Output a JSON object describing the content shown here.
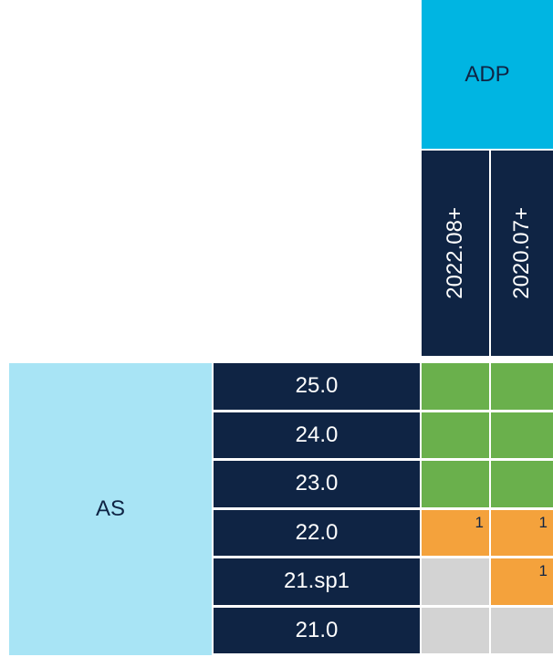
{
  "header": {
    "group": "ADP",
    "versions": [
      "2022.08+",
      "2020.07+"
    ]
  },
  "row_group": "AS",
  "rows": [
    {
      "label": "25.0",
      "cells": [
        {
          "color": "#6ab04c"
        },
        {
          "color": "#6ab04c"
        }
      ]
    },
    {
      "label": "24.0",
      "cells": [
        {
          "color": "#6ab04c"
        },
        {
          "color": "#6ab04c"
        }
      ]
    },
    {
      "label": "23.0",
      "cells": [
        {
          "color": "#6ab04c"
        },
        {
          "color": "#6ab04c"
        }
      ]
    },
    {
      "label": "22.0",
      "cells": [
        {
          "color": "#f4a23c",
          "note": "1"
        },
        {
          "color": "#f4a23c",
          "note": "1"
        }
      ]
    },
    {
      "label": "21.sp1",
      "cells": [
        {
          "color": "#d3d3d3"
        },
        {
          "color": "#f4a23c",
          "note": "1"
        }
      ]
    },
    {
      "label": "21.0",
      "cells": [
        {
          "color": "#d3d3d3"
        },
        {
          "color": "#d3d3d3"
        }
      ]
    }
  ]
}
